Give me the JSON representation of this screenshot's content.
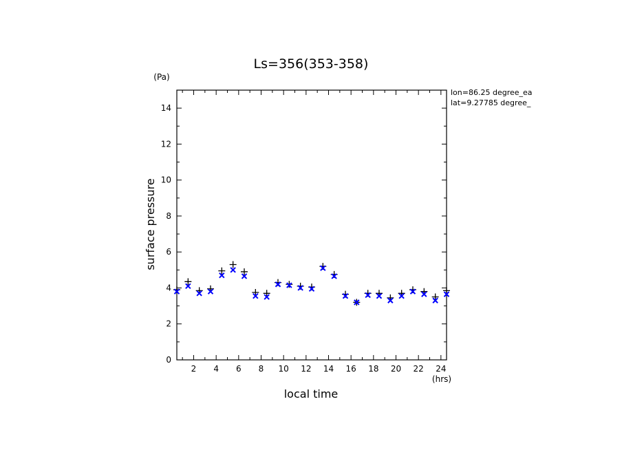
{
  "chart_data": {
    "type": "scatter",
    "title": "Ls=356(353-358)",
    "xlabel": "local time",
    "ylabel": "surface pressure",
    "x_unit": "(hrs)",
    "y_unit": "(Pa)",
    "xlim": [
      0.5,
      24.5
    ],
    "ylim": [
      0,
      15
    ],
    "xticks": [
      2,
      4,
      6,
      8,
      10,
      12,
      14,
      16,
      18,
      20,
      22,
      24
    ],
    "yticks": [
      0,
      2,
      4,
      6,
      8,
      10,
      12,
      14
    ],
    "annotations": [
      "lon=86.25 degree_ea",
      "lat=9.27785 degree_"
    ],
    "series": [
      {
        "marker": "plus",
        "color": "#000000",
        "x": [
          0.5,
          1.5,
          2.5,
          3.5,
          4.5,
          5.5,
          6.5,
          7.5,
          8.5,
          9.5,
          10.5,
          11.5,
          12.5,
          13.5,
          14.5,
          15.5,
          16.5,
          17.5,
          18.5,
          19.5,
          20.5,
          21.5,
          22.5,
          23.5,
          24.5
        ],
        "values": [
          3.9,
          4.35,
          3.85,
          3.95,
          4.95,
          5.3,
          4.9,
          3.75,
          3.7,
          4.3,
          4.2,
          4.1,
          4.05,
          5.2,
          4.75,
          3.65,
          3.2,
          3.7,
          3.7,
          3.45,
          3.7,
          3.9,
          3.8,
          3.5,
          3.85
        ]
      },
      {
        "marker": "x",
        "color": "#0000ff",
        "x": [
          0.5,
          1.5,
          2.5,
          3.5,
          4.5,
          5.5,
          6.5,
          7.5,
          8.5,
          9.5,
          10.5,
          11.5,
          12.5,
          13.5,
          14.5,
          15.5,
          16.5,
          17.5,
          18.5,
          19.5,
          20.5,
          21.5,
          22.5,
          23.5,
          24.5
        ],
        "values": [
          3.8,
          4.1,
          3.7,
          3.8,
          4.7,
          5.0,
          4.65,
          3.55,
          3.5,
          4.2,
          4.15,
          4.0,
          3.95,
          5.1,
          4.65,
          3.55,
          3.2,
          3.6,
          3.55,
          3.3,
          3.55,
          3.8,
          3.65,
          3.3,
          3.65
        ]
      }
    ]
  }
}
